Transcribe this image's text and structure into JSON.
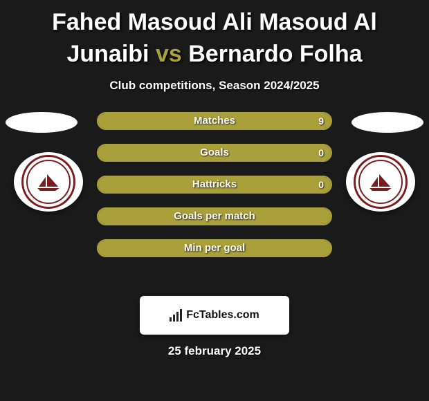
{
  "colors": {
    "background": "#1a1a1a",
    "accent": "#a9a03c",
    "text": "#ffffff",
    "badge_ring": "#7a1c1c",
    "brand_bg": "#ffffff",
    "brand_text": "#111111"
  },
  "title": {
    "player_a": "Fahed Masoud Ali Masoud Al Junaibi",
    "vs": "vs",
    "player_b": "Bernardo Folha",
    "fontsize": 34
  },
  "subtitle": "Club competitions, Season 2024/2025",
  "stats": [
    {
      "label": "Matches",
      "left_fill_pct": 0,
      "right_fill_pct": 100,
      "right_value": "9"
    },
    {
      "label": "Goals",
      "left_fill_pct": 0,
      "right_fill_pct": 100,
      "right_value": "0"
    },
    {
      "label": "Hattricks",
      "left_fill_pct": 0,
      "right_fill_pct": 100,
      "right_value": "0"
    },
    {
      "label": "Goals per match",
      "left_fill_pct": 0,
      "right_fill_pct": 100,
      "right_value": ""
    },
    {
      "label": "Min per goal",
      "left_fill_pct": 0,
      "right_fill_pct": 100,
      "right_value": ""
    }
  ],
  "brand": "FcTables.com",
  "date": "25 february 2025"
}
